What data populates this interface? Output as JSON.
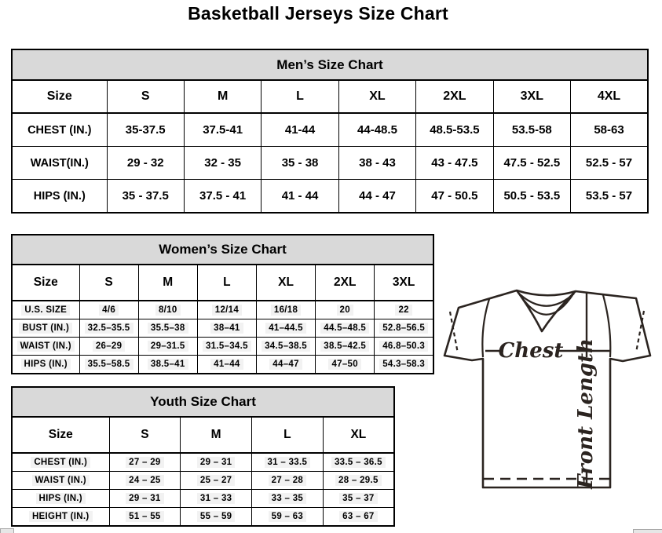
{
  "page_title": "Basketball Jerseys Size Chart",
  "colors": {
    "table_header_bg": "#d9d9d9",
    "cell_highlight": "#f2f2f2",
    "table_border": "#000000",
    "diagram_line": "#2b2420"
  },
  "tables": [
    {
      "id": "mens",
      "title": "Men’s Size Chart",
      "columns": [
        "Size",
        "S",
        "M",
        "L",
        "XL",
        "2XL",
        "3XL",
        "4XL"
      ],
      "rows": [
        {
          "label": "CHEST (IN.)",
          "values": [
            "35-37.5",
            "37.5-41",
            "41-44",
            "44-48.5",
            "48.5-53.5",
            "53.5-58",
            "58-63"
          ]
        },
        {
          "label": "WAIST(IN.)",
          "values": [
            "29 - 32",
            "32 - 35",
            "35 - 38",
            "38 - 43",
            "43 - 47.5",
            "47.5 - 52.5",
            "52.5 - 57"
          ]
        },
        {
          "label": "HIPS (IN.)",
          "values": [
            "35 - 37.5",
            "37.5 - 41",
            "41 - 44",
            "44 - 47",
            "47 - 50.5",
            "50.5 - 53.5",
            "53.5 - 57"
          ]
        }
      ]
    },
    {
      "id": "womens",
      "title": "Women’s Size Chart",
      "columns": [
        "Size",
        "S",
        "M",
        "L",
        "XL",
        "2XL",
        "3XL"
      ],
      "rows": [
        {
          "label": "U.S. SIZE",
          "values": [
            "4/6",
            "8/10",
            "12/14",
            "16/18",
            "20",
            "22"
          ]
        },
        {
          "label": "BUST (IN.)",
          "values": [
            "32.5–35.5",
            "35.5–38",
            "38–41",
            "41–44.5",
            "44.5–48.5",
            "52.8–56.5"
          ]
        },
        {
          "label": "WAIST (IN.)",
          "values": [
            "26–29",
            "29–31.5",
            "31.5–34.5",
            "34.5–38.5",
            "38.5–42.5",
            "46.8–50.3"
          ]
        },
        {
          "label": "HIPS (IN.)",
          "values": [
            "35.5–58.5",
            "38.5–41",
            "41–44",
            "44–47",
            "47–50",
            "54.3–58.3"
          ]
        }
      ]
    },
    {
      "id": "youth",
      "title": "Youth Size Chart",
      "columns": [
        "Size",
        "S",
        "M",
        "L",
        "XL"
      ],
      "rows": [
        {
          "label": "CHEST (IN.)",
          "values": [
            "27 – 29",
            "29 – 31",
            "31 – 33.5",
            "33.5 – 36.5"
          ]
        },
        {
          "label": "WAIST (IN.)",
          "values": [
            "24 – 25",
            "25 – 27",
            "27 – 28",
            "28 – 29.5"
          ]
        },
        {
          "label": "HIPS (IN.)",
          "values": [
            "29 – 31",
            "31 – 33",
            "33 – 35",
            "35 – 37"
          ]
        },
        {
          "label": "HEIGHT (IN.)",
          "values": [
            "51 – 55",
            "55 – 59",
            "59 – 63",
            "63 – 67"
          ]
        }
      ]
    }
  ],
  "diagram": {
    "chest_label": "Chest",
    "front_length_label": "Front Length"
  }
}
